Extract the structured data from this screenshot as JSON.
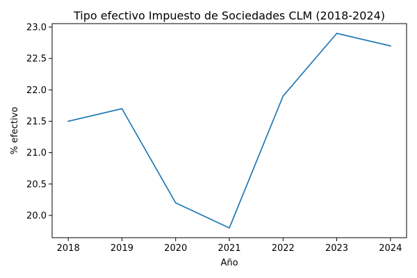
{
  "chart_data": {
    "type": "line",
    "title": "Tipo efectivo Impuesto de Sociedades CLM (2018-2024)",
    "xlabel": "Año",
    "ylabel": "% efectivo",
    "x": [
      2018,
      2019,
      2020,
      2021,
      2022,
      2023,
      2024
    ],
    "x_tick_labels": [
      "2018",
      "2019",
      "2020",
      "2021",
      "2022",
      "2023",
      "2024"
    ],
    "series": [
      {
        "values": [
          21.5,
          21.7,
          20.2,
          19.8,
          21.9,
          22.9,
          22.7
        ],
        "color": "#1f77b4"
      }
    ],
    "xlim": [
      2017.7,
      2024.3
    ],
    "ylim": [
      19.645,
      23.055
    ],
    "y_ticks": [
      20.0,
      20.5,
      21.0,
      21.5,
      22.0,
      22.5,
      23.0
    ],
    "y_tick_labels": [
      "20.0",
      "20.5",
      "21.0",
      "21.5",
      "22.0",
      "22.5",
      "23.0"
    ],
    "grid": false,
    "legend": "none"
  }
}
